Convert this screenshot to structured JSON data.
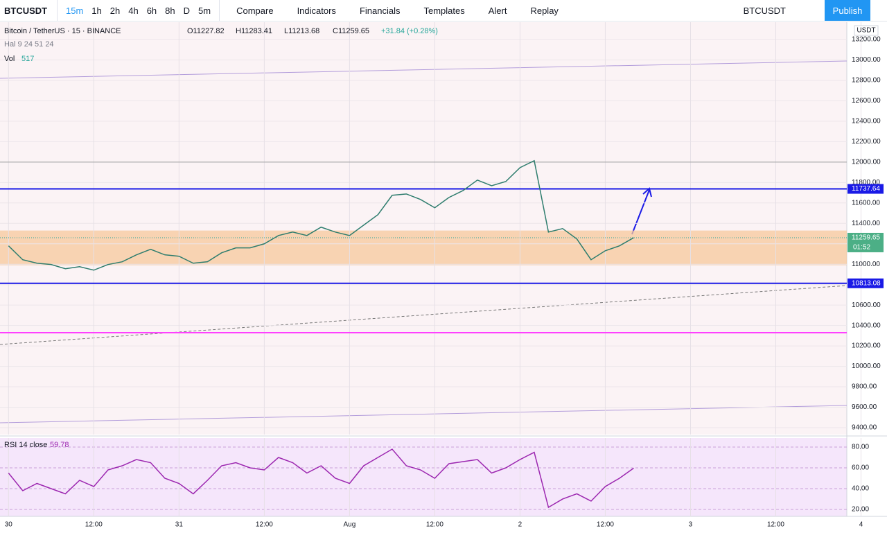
{
  "toolbar": {
    "symbol": "BTCUSDT",
    "intervals": [
      "15m",
      "1h",
      "2h",
      "4h",
      "6h",
      "8h",
      "D",
      "5m"
    ],
    "buttons": [
      "Compare",
      "Indicators",
      "Financials",
      "Templates",
      "Alert",
      "Replay"
    ],
    "symbol2": "BTCUSDT",
    "publish": "Publish"
  },
  "chart_data": [
    {
      "type": "line",
      "title": "Bitcoin / TetherUS · 15 · BINANCE",
      "ohlc": [
        "O11227.82",
        "H11283.41",
        "L11213.68",
        "C11259.65"
      ],
      "change": "+31.84 (+0.28%)",
      "study": "Hal 9 24 51 24",
      "vol_label": "Vol",
      "vol_value": "517",
      "currency": "USDT",
      "timer": "01:52",
      "x": [
        0,
        2,
        4,
        6,
        8,
        10,
        12,
        14,
        16,
        18,
        20,
        22,
        24,
        26,
        28,
        30,
        32,
        34,
        36,
        38,
        40,
        42,
        44,
        46,
        48,
        50,
        52,
        54,
        56,
        58,
        60,
        62,
        64,
        66,
        68,
        70,
        72,
        74,
        76,
        78,
        80,
        82,
        84,
        86,
        88
      ],
      "series": [
        {
          "name": "BTCUSDT",
          "color": "#2e7d6e",
          "values": [
            11180,
            11044,
            11010,
            10997,
            10956,
            10976,
            10942,
            10997,
            11024,
            11092,
            11146,
            11092,
            11078,
            11010,
            11024,
            11112,
            11160,
            11160,
            11200,
            11281,
            11315,
            11281,
            11363,
            11315,
            11281,
            11383,
            11485,
            11675,
            11688,
            11634,
            11553,
            11654,
            11722,
            11824,
            11769,
            11810,
            11946,
            12014,
            11315,
            11349,
            11247,
            11044,
            11132,
            11180,
            11259.65
          ]
        }
      ],
      "levels": [
        {
          "value": 11737.64,
          "color": "#1a1ae6",
          "labeled": true
        },
        {
          "value": 10813.08,
          "color": "#1a1ae6",
          "labeled": true
        },
        {
          "value": 10330,
          "color": "#ff40ff",
          "labeled": false
        },
        {
          "value": 12000,
          "color": "#9e9e9e",
          "labeled": false
        }
      ],
      "zone": [
        10990,
        11330
      ],
      "xlim": [
        -1.2,
        118
      ],
      "xticks": [
        {
          "value": 0,
          "label": "30"
        },
        {
          "value": 12,
          "label": "12:00"
        },
        {
          "value": 24,
          "label": "31"
        },
        {
          "value": 36,
          "label": "12:00"
        },
        {
          "value": 48,
          "label": "Aug"
        },
        {
          "value": 60,
          "label": "12:00"
        },
        {
          "value": 72,
          "label": "2"
        },
        {
          "value": 84,
          "label": "12:00"
        },
        {
          "value": 96,
          "label": "3"
        },
        {
          "value": 108,
          "label": "12:00"
        },
        {
          "value": 120,
          "label": "4"
        }
      ],
      "ylim": [
        9332,
        13370
      ],
      "yticks": [
        {
          "value": 9400,
          "label": "9400.00"
        },
        {
          "value": 9600,
          "label": "9600.00"
        },
        {
          "value": 9800,
          "label": "9800.00"
        },
        {
          "value": 10000,
          "label": "10000.00"
        },
        {
          "value": 10200,
          "label": "10200.00"
        },
        {
          "value": 10400,
          "label": "10400.00"
        },
        {
          "value": 10600,
          "label": "10600.00"
        },
        {
          "value": 10800,
          "label": "10800.00"
        },
        {
          "value": 11000,
          "label": "11000.00"
        },
        {
          "value": 11200,
          "label": "11200.00"
        },
        {
          "value": 11400,
          "label": "11400.00"
        },
        {
          "value": 11600,
          "label": "11600.00"
        },
        {
          "value": 11800,
          "label": "11800.00"
        },
        {
          "value": 12000,
          "label": "12000.00"
        },
        {
          "value": 12200,
          "label": "12200.00"
        },
        {
          "value": 12400,
          "label": "12400.00"
        },
        {
          "value": 12600,
          "label": "12600.00"
        },
        {
          "value": 12800,
          "label": "12800.00"
        },
        {
          "value": 13000,
          "label": "13000.00"
        },
        {
          "value": 13200,
          "label": "13200.00"
        }
      ],
      "grid": true
    },
    {
      "type": "line",
      "title": "RSI 14 close",
      "value_label": "59.78",
      "x": [
        0,
        2,
        4,
        6,
        8,
        10,
        12,
        14,
        16,
        18,
        20,
        22,
        24,
        26,
        28,
        30,
        32,
        34,
        36,
        38,
        40,
        42,
        44,
        46,
        48,
        50,
        52,
        54,
        56,
        58,
        60,
        62,
        64,
        66,
        68,
        70,
        72,
        74,
        76,
        78,
        80,
        82,
        84,
        86,
        88
      ],
      "series": [
        {
          "name": "RSI",
          "color": "#9c27b0",
          "values": [
            55,
            38,
            45,
            40,
            35,
            48,
            42,
            58,
            62,
            68,
            65,
            50,
            45,
            35,
            48,
            62,
            65,
            60,
            58,
            70,
            65,
            55,
            62,
            50,
            45,
            62,
            70,
            78,
            62,
            58,
            50,
            64,
            66,
            68,
            55,
            60,
            68,
            75,
            22,
            30,
            35,
            28,
            42,
            50,
            59.78
          ]
        }
      ],
      "xlim": [
        -1.2,
        118
      ],
      "ylim": [
        13.3,
        88.7
      ],
      "yticks": [
        {
          "value": 20,
          "label": "20.00"
        },
        {
          "value": 40,
          "label": "40.00"
        },
        {
          "value": 60,
          "label": "60.00"
        },
        {
          "value": 80,
          "label": "80.00"
        }
      ],
      "grid": true
    }
  ]
}
